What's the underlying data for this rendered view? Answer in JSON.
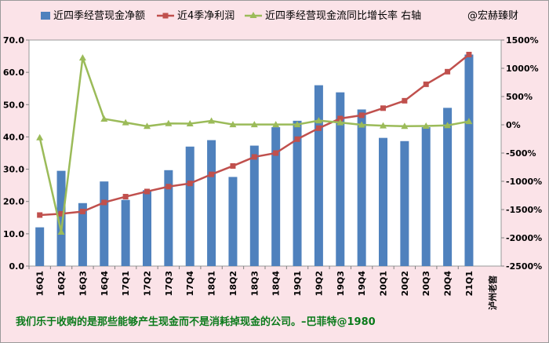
{
  "chart_data": {
    "type": "bar",
    "categories": [
      "16Q1",
      "16Q2",
      "16Q3",
      "16Q4",
      "17Q1",
      "17Q2",
      "17Q3",
      "17Q4",
      "18Q1",
      "18Q2",
      "18Q3",
      "18Q4",
      "19Q1",
      "19Q2",
      "19Q3",
      "19Q4",
      "20Q1",
      "20Q2",
      "20Q3",
      "20Q4",
      "21Q1"
    ],
    "series": [
      {
        "name": "近四季经营现金净额",
        "type": "bar",
        "axis": "left",
        "color": "#4f81bd",
        "values": [
          12.0,
          29.5,
          19.5,
          26.2,
          20.5,
          23.5,
          29.7,
          37.0,
          39.0,
          27.6,
          37.3,
          43.0,
          45.0,
          56.0,
          53.8,
          48.5,
          39.7,
          38.7,
          43.0,
          49.0,
          65.5
        ]
      },
      {
        "name": "近4季净利润",
        "type": "line",
        "axis": "left",
        "color": "#c0504d",
        "marker": "square",
        "values": [
          15.8,
          16.2,
          16.9,
          19.7,
          21.5,
          23.1,
          24.6,
          25.6,
          28.4,
          31.0,
          33.8,
          35.0,
          39.3,
          42.7,
          45.7,
          46.7,
          48.9,
          51.2,
          56.3,
          60.2,
          65.5
        ]
      },
      {
        "name": "近四季经营现金流同比增长率 右轴",
        "type": "line",
        "axis": "right",
        "color": "#9bbb59",
        "marker": "triangle",
        "values": [
          -225,
          -1895,
          1185,
          105,
          40,
          -25,
          25,
          20,
          70,
          5,
          5,
          5,
          5,
          75,
          40,
          0,
          -15,
          -25,
          -20,
          -10,
          60
        ]
      }
    ],
    "watermark_name": "@宏赫臻财",
    "ylim": [
      0,
      70
    ],
    "yticks": [
      "0.0",
      "10.0",
      "20.0",
      "30.0",
      "40.0",
      "50.0",
      "60.0",
      "70.0"
    ],
    "y2lim": [
      -2500,
      1500
    ],
    "y2ticks": [
      "-2500%",
      "-2000%",
      "-1500%",
      "-1000%",
      "-500%",
      "0%",
      "500%",
      "1000%",
      "1500%"
    ],
    "company_label": "泸州老窖",
    "quote": "我们乐于收购的是那些能够产生现金而不是消耗掉现金的公司。–巴菲特@1980",
    "legend_position": "top",
    "grid": false
  }
}
